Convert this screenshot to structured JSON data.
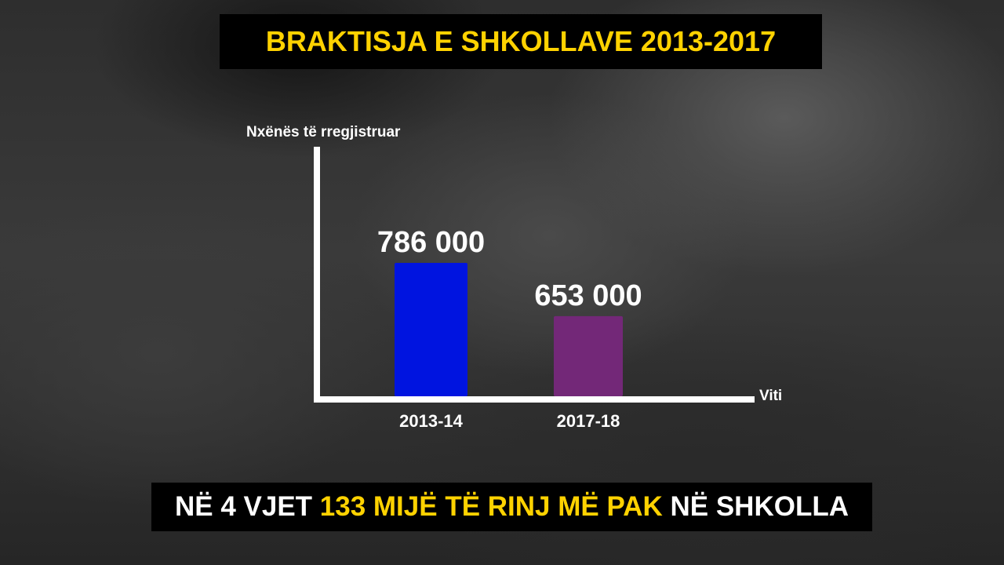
{
  "title": "BRAKTISJA E SHKOLLAVE 2013-2017",
  "footer": {
    "part1": "NË 4 VJET ",
    "highlight": "133 MIJË TË RINJ MË PAK",
    "part2": " NË SHKOLLA"
  },
  "colors": {
    "accent": "#FFD200",
    "bar1": "#0014E0",
    "bar2": "#732878"
  },
  "chart_data": {
    "type": "bar",
    "title": "BRAKTISJA E SHKOLLAVE 2013-2017",
    "ylabel": "Nxënës të rregjistruar",
    "xlabel": "Viti",
    "categories": [
      "2013-14",
      "2017-18"
    ],
    "values": [
      786000,
      653000
    ],
    "data_labels": [
      "786 000",
      "653 000"
    ],
    "bar_colors": [
      "#0014E0",
      "#732878"
    ],
    "grid": false,
    "legend": "none"
  }
}
